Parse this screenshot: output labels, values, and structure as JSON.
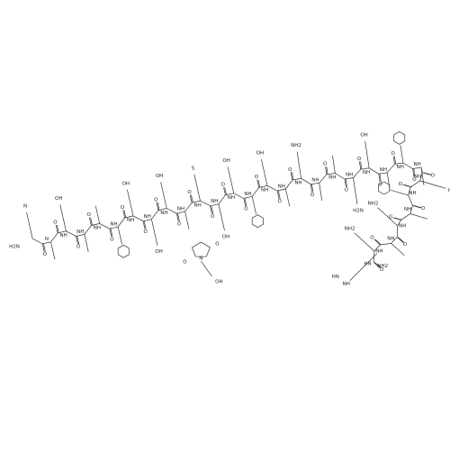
{
  "molecule": {
    "n_terminus": "H2N",
    "c_terminus": "NH2",
    "residues": [
      {
        "amide": "N",
        "carbonyl": "O",
        "side": "N"
      },
      {
        "amide": "NH",
        "carbonyl": "O",
        "side": null
      },
      {
        "amide": "NH",
        "carbonyl": "O",
        "side": "OH"
      },
      {
        "amide": "NH",
        "carbonyl": "O",
        "side": null
      },
      {
        "amide": "NH",
        "carbonyl": "O",
        "side": null
      },
      {
        "amide": "NH",
        "carbonyl": "O",
        "side": null
      },
      {
        "amide": "NH",
        "carbonyl": "O",
        "side": "OH"
      },
      {
        "amide": "NH",
        "carbonyl": "O",
        "side": "OH"
      },
      {
        "amide": "NH",
        "carbonyl": "O",
        "side": "OH"
      },
      {
        "amide": "NH",
        "carbonyl": "O",
        "side": null
      },
      {
        "amide": "NH",
        "carbonyl": "O",
        "side": "S"
      },
      {
        "amide": "NH",
        "carbonyl": "O",
        "side": "OH"
      },
      {
        "amide": "NH",
        "carbonyl": "O",
        "side": "OH"
      },
      {
        "amide": "NH",
        "carbonyl": "O",
        "side": null
      },
      {
        "amide": "NH",
        "carbonyl": "O",
        "side": "OH"
      },
      {
        "amide": "NH",
        "carbonyl": "O",
        "side": null
      },
      {
        "amide": "NH",
        "carbonyl": "O",
        "side": "NH2"
      },
      {
        "amide": "NH",
        "carbonyl": "O",
        "side": null
      },
      {
        "amide": "NH",
        "carbonyl": "O",
        "side": null
      },
      {
        "amide": "NH",
        "carbonyl": "O",
        "side": "H2N"
      },
      {
        "amide": "NH",
        "carbonyl": "O",
        "side": "OH"
      },
      {
        "amide": "NH",
        "carbonyl": "O",
        "side": null
      },
      {
        "amide": "NH",
        "carbonyl": "O",
        "side": null
      },
      {
        "amide": "NH",
        "carbonyl": "O",
        "side": null
      },
      {
        "amide": "NH",
        "carbonyl": "O",
        "side": "HN"
      },
      {
        "amide": "NH",
        "carbonyl": "O",
        "side": null
      },
      {
        "amide": "NH",
        "carbonyl": "O",
        "side": null
      },
      {
        "amide": "NH",
        "carbonyl": "O",
        "side": "NH2"
      },
      {
        "amide": "NH",
        "carbonyl": "O",
        "side": null
      },
      {
        "amide": "HN",
        "carbonyl": "O",
        "side": "NH2"
      }
    ],
    "succinimide": {
      "ring_n": "N",
      "oxo": "O",
      "acid": "OH"
    },
    "guanidine": {
      "imine": "HN",
      "amine": "NH"
    }
  }
}
